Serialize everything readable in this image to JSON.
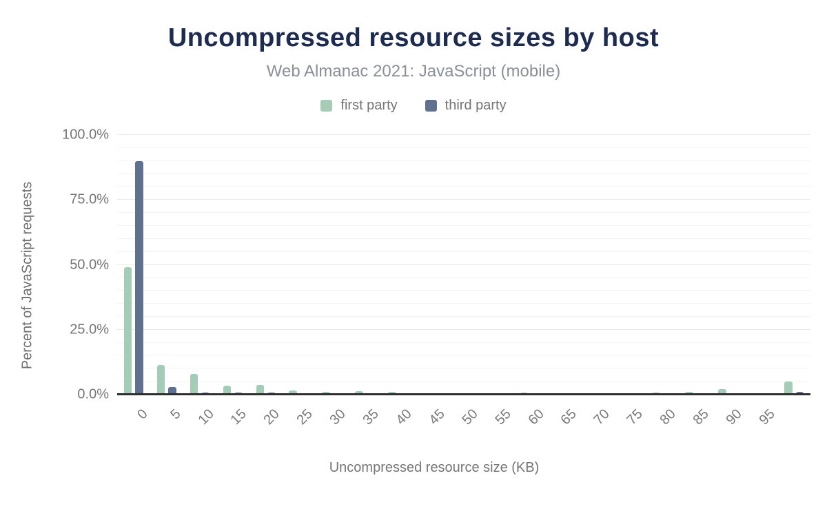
{
  "header": {
    "title": "Uncompressed resource sizes by host",
    "subtitle": "Web Almanac 2021: JavaScript (mobile)"
  },
  "legend": [
    {
      "label": "first party",
      "color": "#a4ccb7"
    },
    {
      "label": "third party",
      "color": "#5f718e"
    }
  ],
  "axes": {
    "y_title": "Percent of JavaScript requests",
    "x_title": "Uncompressed resource size (KB)"
  },
  "colors": {
    "title": "#1e2b50",
    "subtitle": "#8a8f98",
    "axis_text": "#757575",
    "first_party": "#a4ccb7",
    "third_party": "#5f718e",
    "baseline": "#2e2e2e",
    "grid_minor": "#f4f4f4",
    "grid_major": "#e9e9e9"
  },
  "chart_data": {
    "type": "bar",
    "title": "Uncompressed resource sizes by host",
    "subtitle": "Web Almanac 2021: JavaScript (mobile)",
    "xlabel": "Uncompressed resource size (KB)",
    "ylabel": "Percent of JavaScript requests",
    "ylim": [
      0,
      100
    ],
    "grid": "on",
    "grid_minor_step": 5,
    "grid_major_step": 25,
    "legend_position": "top",
    "y_ticks": [
      {
        "label": "100.0%",
        "value": 100
      },
      {
        "label": "75.0%",
        "value": 75
      },
      {
        "label": "50.0%",
        "value": 50
      },
      {
        "label": "25.0%",
        "value": 25
      },
      {
        "label": "0.0%",
        "value": 0
      }
    ],
    "categories": [
      "0",
      "5",
      "10",
      "15",
      "20",
      "25",
      "30",
      "35",
      "40",
      "45",
      "50",
      "55",
      "60",
      "65",
      "70",
      "75",
      "80",
      "85",
      "90",
      "95",
      ""
    ],
    "series": [
      {
        "name": "first party",
        "color": "#a4ccb7",
        "values": [
          49,
          11.5,
          8,
          3.5,
          3.7,
          1.7,
          1.1,
          1.4,
          1.1,
          0.6,
          0.6,
          0.6,
          0.7,
          0.5,
          0,
          0,
          0.7,
          1,
          2,
          0.6,
          5
        ]
      },
      {
        "name": "third party",
        "color": "#5f718e",
        "values": [
          90,
          3,
          0.8,
          0.7,
          0.7,
          0,
          0,
          0,
          0,
          0,
          0,
          0,
          0,
          0,
          0,
          0,
          0,
          0,
          0,
          0,
          1
        ]
      }
    ]
  }
}
